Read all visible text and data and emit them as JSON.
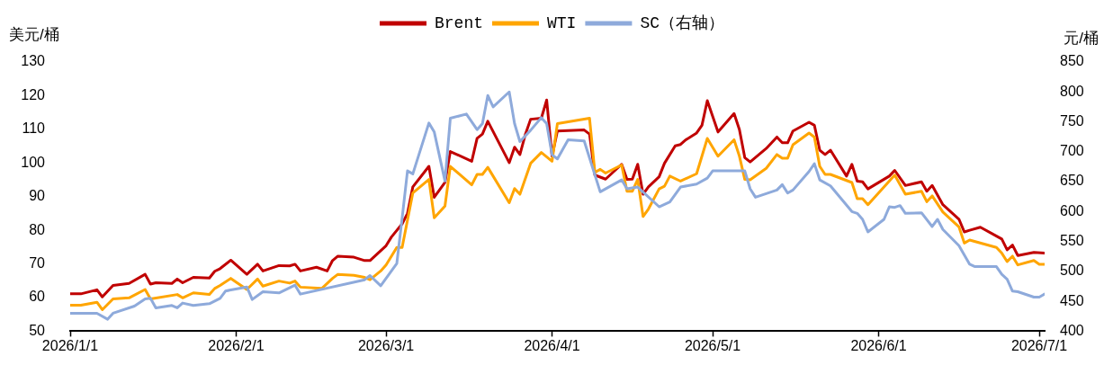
{
  "chart_data": {
    "type": "line",
    "ylabel": "美元/桶",
    "y2label": "元/桶",
    "xlim": [
      "2026-01-01",
      "2026-07-02"
    ],
    "xticks": [
      {
        "value": "2026-01-01",
        "label": "2026/1/1"
      },
      {
        "value": "2026-02-01",
        "label": "2026/2/1"
      },
      {
        "value": "2026-03-01",
        "label": "2026/3/1"
      },
      {
        "value": "2026-04-01",
        "label": "2026/4/1"
      },
      {
        "value": "2026-05-01",
        "label": "2026/5/1"
      },
      {
        "value": "2026-06-01",
        "label": "2026/6/1"
      },
      {
        "value": "2026-07-01",
        "label": "2026/7/1"
      }
    ],
    "ylim": [
      50,
      130
    ],
    "yticks": [
      50,
      60,
      70,
      80,
      90,
      100,
      110,
      120,
      130
    ],
    "y2lim": [
      400,
      850
    ],
    "y2ticks": [
      400,
      450,
      500,
      550,
      600,
      650,
      700,
      750,
      800,
      850
    ],
    "legend": "top",
    "grid": false,
    "marker": "none",
    "line_style": "solid",
    "series": [
      {
        "name": "Brent",
        "color": "#c00000",
        "x": [
          "2026-01-01",
          "2026-01-03",
          "2026-01-06",
          "2026-01-07",
          "2026-01-09",
          "2026-01-12",
          "2026-01-15",
          "2026-01-16",
          "2026-01-17",
          "2026-01-20",
          "2026-01-21",
          "2026-01-22",
          "2026-01-24",
          "2026-01-27",
          "2026-01-28",
          "2026-01-29",
          "2026-01-31",
          "2026-02-03",
          "2026-02-05",
          "2026-02-06",
          "2026-02-09",
          "2026-02-11",
          "2026-02-12",
          "2026-02-13",
          "2026-02-16",
          "2026-02-18",
          "2026-02-19",
          "2026-02-20",
          "2026-02-23",
          "2026-02-25",
          "2026-02-26",
          "2026-03-01",
          "2026-03-02",
          "2026-03-04",
          "2026-03-05",
          "2026-03-06",
          "2026-03-09",
          "2026-03-10",
          "2026-03-12",
          "2026-03-13",
          "2026-03-17",
          "2026-03-18",
          "2026-03-19",
          "2026-03-20",
          "2026-03-24",
          "2026-03-25",
          "2026-03-26",
          "2026-03-27",
          "2026-03-28",
          "2026-03-30",
          "2026-03-31",
          "2026-04-01",
          "2026-04-02",
          "2026-04-07",
          "2026-04-08",
          "2026-04-09",
          "2026-04-11",
          "2026-04-14",
          "2026-04-15",
          "2026-04-16",
          "2026-04-17",
          "2026-04-18",
          "2026-04-19",
          "2026-04-21",
          "2026-04-22",
          "2026-04-24",
          "2026-04-25",
          "2026-04-26",
          "2026-04-28",
          "2026-04-29",
          "2026-04-30",
          "2026-05-02",
          "2026-05-05",
          "2026-05-06",
          "2026-05-07",
          "2026-05-08",
          "2026-05-11",
          "2026-05-13",
          "2026-05-14",
          "2026-05-15",
          "2026-05-16",
          "2026-05-19",
          "2026-05-20",
          "2026-05-21",
          "2026-05-22",
          "2026-05-23",
          "2026-05-26",
          "2026-05-27",
          "2026-05-28",
          "2026-05-29",
          "2026-05-30",
          "2026-06-03",
          "2026-06-04",
          "2026-06-06",
          "2026-06-09",
          "2026-06-10",
          "2026-06-11",
          "2026-06-13",
          "2026-06-16",
          "2026-06-17",
          "2026-06-18",
          "2026-06-20",
          "2026-06-24",
          "2026-06-25",
          "2026-06-26",
          "2026-06-27",
          "2026-06-30",
          "2026-07-02"
        ],
        "values": [
          61.1,
          61.1,
          62.3,
          60.2,
          63.6,
          64.2,
          66.9,
          64.0,
          64.4,
          64.2,
          65.5,
          64.4,
          66.0,
          65.8,
          67.8,
          68.6,
          71.1,
          66.9,
          69.9,
          67.9,
          69.5,
          69.4,
          69.9,
          67.9,
          69.0,
          67.9,
          71.0,
          72.3,
          72.0,
          71.0,
          71.0,
          75.4,
          78.0,
          81.9,
          85.0,
          92.9,
          99.0,
          89.8,
          94.2,
          103.4,
          100.5,
          107.3,
          108.6,
          112.4,
          100.1,
          104.7,
          102.5,
          108.4,
          113.0,
          113.3,
          118.7,
          102.0,
          109.5,
          109.8,
          108.6,
          96.4,
          95.2,
          99.6,
          95.1,
          95.2,
          99.6,
          90.7,
          92.9,
          95.9,
          99.9,
          105.1,
          105.5,
          106.9,
          108.9,
          111.2,
          118.5,
          109.2,
          114.7,
          109.9,
          101.6,
          100.3,
          104.3,
          107.7,
          106.0,
          106.0,
          109.5,
          112.1,
          111.2,
          103.8,
          102.5,
          103.8,
          96.1,
          99.6,
          94.6,
          94.4,
          92.3,
          96.1,
          97.8,
          93.3,
          94.4,
          91.6,
          93.3,
          87.6,
          83.3,
          79.5,
          80.0,
          80.9,
          77.4,
          74.2,
          75.6,
          72.5,
          73.4,
          73.2
        ]
      },
      {
        "name": "WTI",
        "color": "#ffa500",
        "x": [
          "2026-01-01",
          "2026-01-03",
          "2026-01-06",
          "2026-01-07",
          "2026-01-09",
          "2026-01-12",
          "2026-01-15",
          "2026-01-16",
          "2026-01-21",
          "2026-01-22",
          "2026-01-24",
          "2026-01-27",
          "2026-01-28",
          "2026-01-29",
          "2026-01-31",
          "2026-02-03",
          "2026-02-05",
          "2026-02-06",
          "2026-02-09",
          "2026-02-11",
          "2026-02-12",
          "2026-02-13",
          "2026-02-17",
          "2026-02-19",
          "2026-02-20",
          "2026-02-23",
          "2026-02-25",
          "2026-02-26",
          "2026-02-28",
          "2026-03-01",
          "2026-03-02",
          "2026-03-03",
          "2026-03-04",
          "2026-03-06",
          "2026-03-09",
          "2026-03-10",
          "2026-03-12",
          "2026-03-13",
          "2026-03-17",
          "2026-03-18",
          "2026-03-19",
          "2026-03-20",
          "2026-03-24",
          "2026-03-25",
          "2026-03-26",
          "2026-03-28",
          "2026-03-30",
          "2026-04-01",
          "2026-04-02",
          "2026-04-08",
          "2026-04-09",
          "2026-04-10",
          "2026-04-11",
          "2026-04-14",
          "2026-04-15",
          "2026-04-16",
          "2026-04-17",
          "2026-04-18",
          "2026-04-19",
          "2026-04-21",
          "2026-04-22",
          "2026-04-23",
          "2026-04-25",
          "2026-04-28",
          "2026-04-30",
          "2026-05-02",
          "2026-05-05",
          "2026-05-06",
          "2026-05-07",
          "2026-05-08",
          "2026-05-11",
          "2026-05-13",
          "2026-05-14",
          "2026-05-15",
          "2026-05-16",
          "2026-05-19",
          "2026-05-20",
          "2026-05-21",
          "2026-05-22",
          "2026-05-23",
          "2026-05-27",
          "2026-05-28",
          "2026-05-29",
          "2026-05-30",
          "2026-06-04",
          "2026-06-06",
          "2026-06-09",
          "2026-06-10",
          "2026-06-11",
          "2026-06-13",
          "2026-06-16",
          "2026-06-17",
          "2026-06-18",
          "2026-06-23",
          "2026-06-24",
          "2026-06-25",
          "2026-06-26",
          "2026-06-27",
          "2026-06-30",
          "2026-07-01",
          "2026-07-02"
        ],
        "values": [
          57.7,
          57.7,
          58.6,
          56.4,
          59.6,
          59.9,
          62.4,
          59.6,
          60.9,
          59.9,
          61.4,
          60.9,
          62.7,
          63.6,
          65.7,
          62.4,
          65.5,
          63.4,
          64.9,
          64.3,
          64.9,
          63.1,
          62.7,
          65.7,
          66.9,
          66.6,
          66.0,
          65.3,
          67.9,
          69.7,
          72.3,
          74.9,
          74.9,
          91.1,
          95.1,
          83.7,
          87.2,
          99.0,
          93.5,
          96.6,
          96.6,
          98.7,
          88.2,
          92.4,
          90.7,
          99.9,
          103.1,
          100.5,
          111.7,
          113.3,
          97.2,
          98.1,
          97.0,
          99.4,
          91.6,
          91.6,
          95.1,
          84.1,
          86.3,
          92.3,
          93.1,
          96.1,
          94.6,
          96.8,
          107.3,
          102.0,
          106.9,
          102.0,
          95.1,
          95.0,
          98.4,
          102.5,
          101.4,
          101.4,
          105.4,
          108.9,
          107.7,
          99.0,
          96.6,
          96.6,
          94.2,
          89.4,
          89.4,
          87.6,
          96.4,
          90.7,
          91.6,
          88.5,
          90.2,
          85.4,
          81.0,
          76.2,
          77.1,
          74.9,
          73.2,
          70.7,
          72.3,
          69.7,
          71.0,
          69.9,
          69.9
        ]
      },
      {
        "name": "SC（右轴）",
        "color": "#8eaadb",
        "axis": "y2",
        "x": [
          "2026-01-01",
          "2026-01-06",
          "2026-01-08",
          "2026-01-09",
          "2026-01-13",
          "2026-01-15",
          "2026-01-16",
          "2026-01-17",
          "2026-01-20",
          "2026-01-21",
          "2026-01-22",
          "2026-01-24",
          "2026-01-27",
          "2026-01-29",
          "2026-01-30",
          "2026-01-31",
          "2026-02-03",
          "2026-02-04",
          "2026-02-06",
          "2026-02-09",
          "2026-02-12",
          "2026-02-13",
          "2026-02-25",
          "2026-02-26",
          "2026-02-28",
          "2026-03-03",
          "2026-03-04",
          "2026-03-05",
          "2026-03-06",
          "2026-03-09",
          "2026-03-10",
          "2026-03-12",
          "2026-03-13",
          "2026-03-16",
          "2026-03-18",
          "2026-03-19",
          "2026-03-20",
          "2026-03-21",
          "2026-03-24",
          "2026-03-25",
          "2026-03-26",
          "2026-03-28",
          "2026-03-30",
          "2026-03-31",
          "2026-04-01",
          "2026-04-02",
          "2026-04-04",
          "2026-04-07",
          "2026-04-10",
          "2026-04-14",
          "2026-04-15",
          "2026-04-17",
          "2026-04-21",
          "2026-04-23",
          "2026-04-25",
          "2026-04-28",
          "2026-04-30",
          "2026-05-01",
          "2026-05-07",
          "2026-05-08",
          "2026-05-09",
          "2026-05-13",
          "2026-05-14",
          "2026-05-15",
          "2026-05-16",
          "2026-05-19",
          "2026-05-20",
          "2026-05-21",
          "2026-05-23",
          "2026-05-27",
          "2026-05-28",
          "2026-05-29",
          "2026-05-30",
          "2026-06-02",
          "2026-06-03",
          "2026-06-04",
          "2026-06-05",
          "2026-06-06",
          "2026-06-09",
          "2026-06-11",
          "2026-06-12",
          "2026-06-13",
          "2026-06-16",
          "2026-06-18",
          "2026-06-19",
          "2026-06-23",
          "2026-06-24",
          "2026-06-25",
          "2026-06-26",
          "2026-06-27",
          "2026-06-30",
          "2026-07-01",
          "2026-07-02"
        ],
        "values": [
          430,
          430,
          420,
          430,
          442,
          454,
          455,
          439,
          443,
          439,
          447,
          443,
          446,
          455,
          467,
          469,
          474,
          453,
          466,
          464,
          477,
          462,
          486,
          493,
          476,
          513,
          589,
          668,
          663,
          748,
          733,
          651,
          756,
          763,
          737,
          747,
          794,
          775,
          800,
          747,
          717,
          736,
          757,
          747,
          695,
          688,
          720,
          718,
          633,
          653,
          638,
          641,
          608,
          616,
          641,
          646,
          656,
          668,
          668,
          638,
          624,
          636,
          645,
          631,
          636,
          667,
          680,
          653,
          643,
          600,
          597,
          587,
          566,
          587,
          608,
          607,
          610,
          597,
          598,
          575,
          587,
          570,
          543,
          512,
          508,
          508,
          495,
          487,
          467,
          466,
          457,
          457,
          462
        ]
      }
    ]
  }
}
